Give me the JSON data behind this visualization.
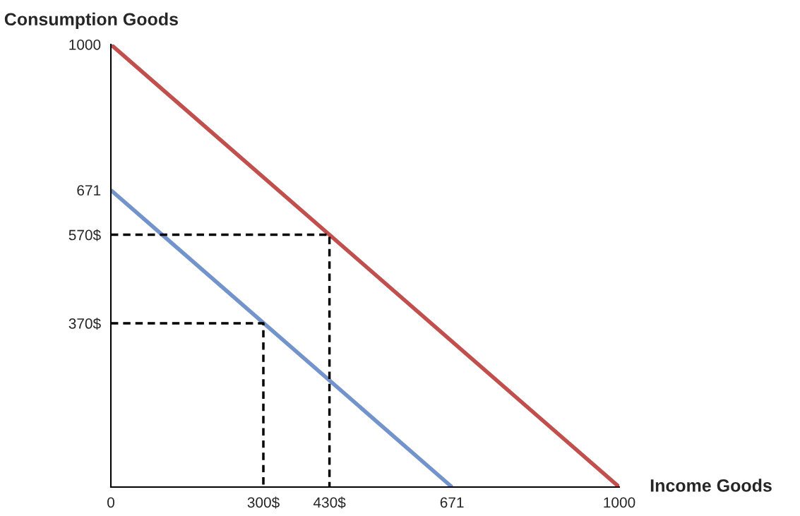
{
  "chart_data": {
    "type": "line",
    "xlabel": "Income Goods",
    "ylabel": "Consumption Goods",
    "xlim": [
      0,
      1000
    ],
    "ylim": [
      0,
      1000
    ],
    "xticks": [
      0,
      {
        "value": 300,
        "label": "300$"
      },
      {
        "value": 430,
        "label": "430$"
      },
      671,
      1000
    ],
    "yticks": [
      {
        "value": 370,
        "label": "370$"
      },
      {
        "value": 570,
        "label": "570$"
      },
      671,
      1000
    ],
    "grid": false,
    "legend": false,
    "marker": "none",
    "series": [
      {
        "color": "#c0504d",
        "x": [
          0,
          1000
        ],
        "values": [
          1000,
          0
        ],
        "line_style": "solid"
      },
      {
        "color": "#7394cb",
        "x": [
          0,
          671
        ],
        "values": [
          671,
          0
        ],
        "line_style": "solid"
      },
      {
        "color": "#000000",
        "x": [
          0,
          430,
          430
        ],
        "values": [
          570,
          570,
          0
        ],
        "line_style": "dashed"
      },
      {
        "color": "#000000",
        "x": [
          0,
          300,
          300
        ],
        "values": [
          370,
          370,
          0
        ],
        "line_style": "dashed"
      }
    ]
  }
}
